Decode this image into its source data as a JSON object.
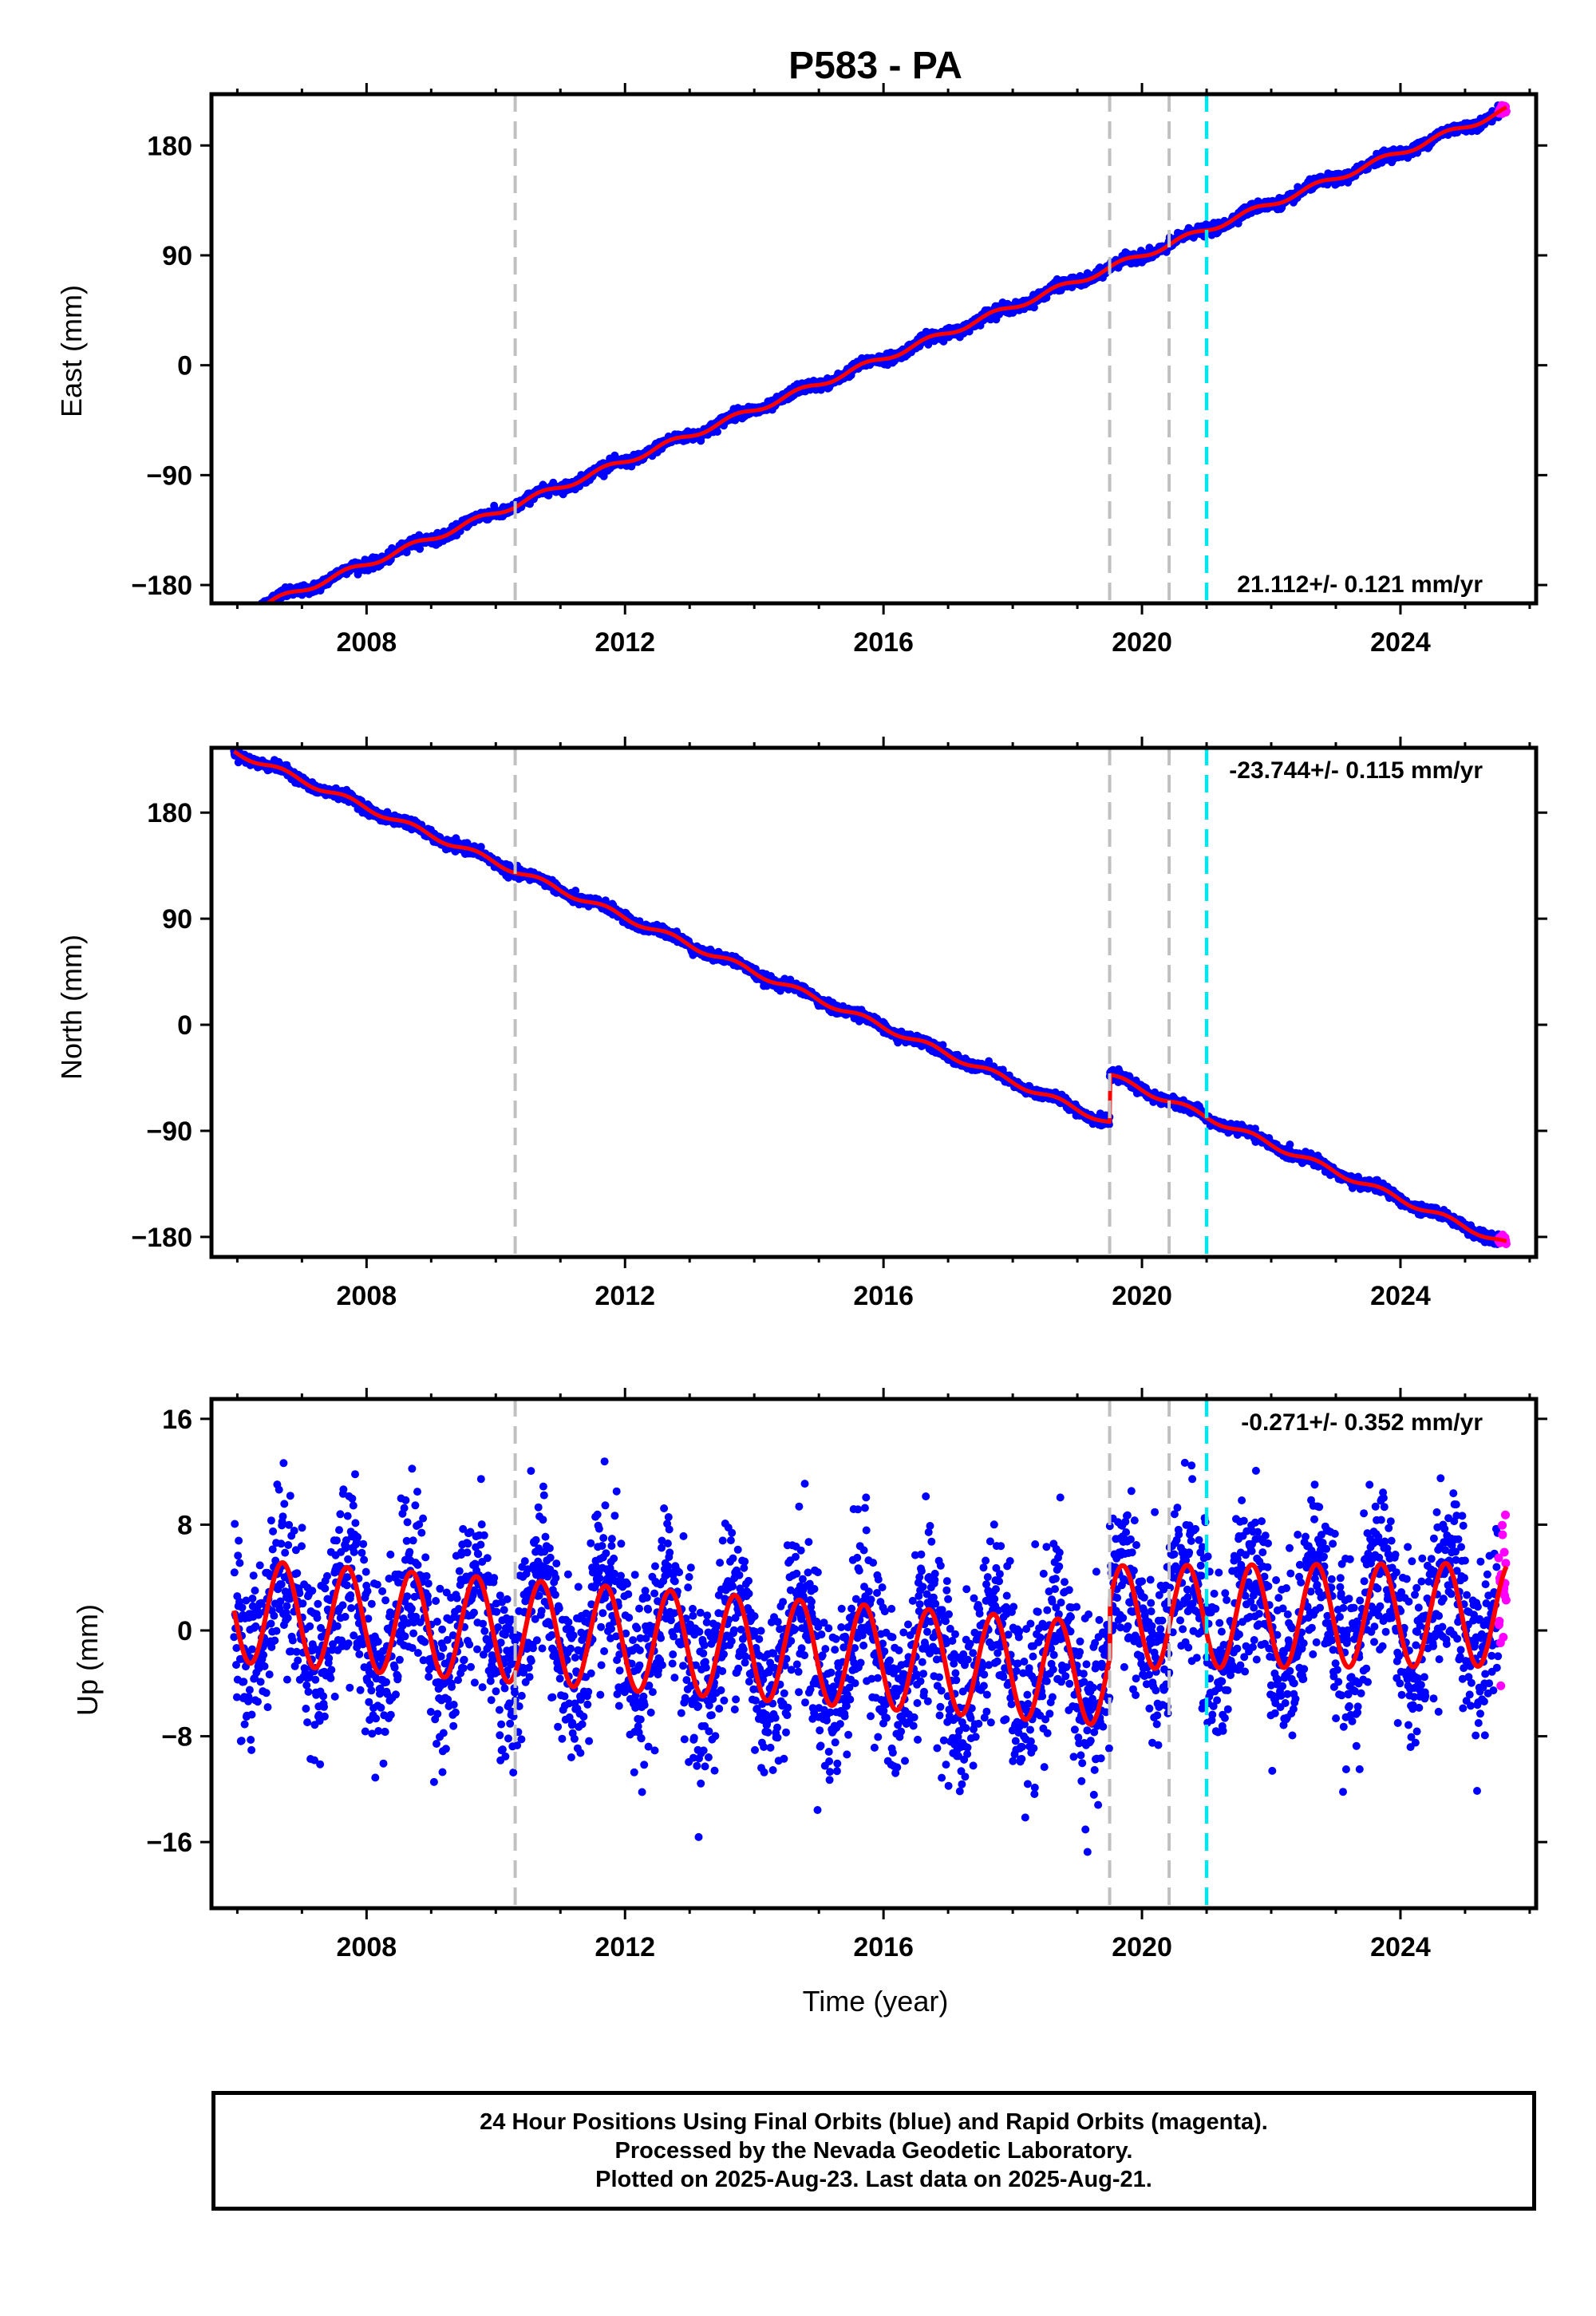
{
  "title": "P583 - PA",
  "colors": {
    "final_orbits": "#0000ff",
    "rapid_orbits": "#ff00ff",
    "model": "#ff0000",
    "event_line": "#c0c0c0",
    "highlight_line": "#00e5ee"
  },
  "chart_data": [
    {
      "type": "scatter",
      "panel": "east",
      "xlabel": "",
      "ylabel": "East (mm)",
      "xlim": [
        2005.6,
        2026.1
      ],
      "ylim": [
        -195,
        222
      ],
      "x_ticks": [
        2008,
        2012,
        2016,
        2020,
        2024
      ],
      "y_ticks": [
        -180,
        -90,
        0,
        90,
        180
      ],
      "grid": false,
      "rate_text": "21.112+/- 0.121 mm/yr",
      "rate_mm_per_yr": 21.112,
      "rate_sigma": 0.121,
      "data_start": 2005.95,
      "data_end": 2025.64,
      "start_value": -206,
      "end_value": 209,
      "seasonal_amplitude": 2.5,
      "noise": 2.0,
      "offsets": [],
      "event_lines": [
        2010.3,
        2019.5,
        2020.42
      ],
      "highlight_line": 2021.0
    },
    {
      "type": "scatter",
      "panel": "north",
      "xlabel": "",
      "ylabel": "North (mm)",
      "xlim": [
        2005.6,
        2026.1
      ],
      "ylim": [
        -197,
        235
      ],
      "x_ticks": [
        2008,
        2012,
        2016,
        2020,
        2024
      ],
      "y_ticks": [
        -180,
        -90,
        0,
        90,
        180
      ],
      "grid": false,
      "rate_text": "-23.744+/- 0.115 mm/yr",
      "rate_mm_per_yr": -23.744,
      "rate_sigma": 0.115,
      "data_start": 2005.95,
      "data_end": 2025.64,
      "start_value": 232,
      "end_value": -186,
      "seasonal_amplitude": 2.5,
      "noise": 2.0,
      "offsets": [
        {
          "t": 2019.5,
          "jump": 40
        }
      ],
      "event_lines": [
        2010.3,
        2019.5,
        2020.42
      ],
      "highlight_line": 2021.0
    },
    {
      "type": "scatter",
      "panel": "up",
      "xlabel": "Time (year)",
      "ylabel": "Up (mm)",
      "xlim": [
        2005.6,
        2026.1
      ],
      "ylim": [
        -21,
        17.5
      ],
      "x_ticks": [
        2008,
        2012,
        2016,
        2020,
        2024
      ],
      "y_ticks": [
        -16,
        -8,
        0,
        8,
        16
      ],
      "grid": false,
      "rate_text": "-0.271+/- 0.352 mm/yr",
      "rate_mm_per_yr": -0.271,
      "rate_sigma": 0.352,
      "data_start": 2005.95,
      "data_end": 2025.64,
      "start_value": 1.5,
      "end_value": 1.2,
      "seasonal_amplitude": 3.9,
      "noise": 3.3,
      "offsets": [],
      "segments": [
        {
          "from": 2005.95,
          "to": 2019.5,
          "start_mean": 1.5,
          "end_mean": -3.3
        },
        {
          "from": 2019.5,
          "to": 2025.64,
          "start_mean": 1.0,
          "end_mean": 1.2
        }
      ],
      "event_lines": [
        2010.3,
        2019.5,
        2020.42
      ],
      "highlight_line": 2021.0
    }
  ],
  "footer": {
    "line1": "24 Hour Positions Using Final Orbits (blue) and Rapid Orbits (magenta).",
    "line2": "Processed by the Nevada Geodetic Laboratory.",
    "line3": "Plotted on 2025-Aug-23. Last data on 2025-Aug-21."
  }
}
